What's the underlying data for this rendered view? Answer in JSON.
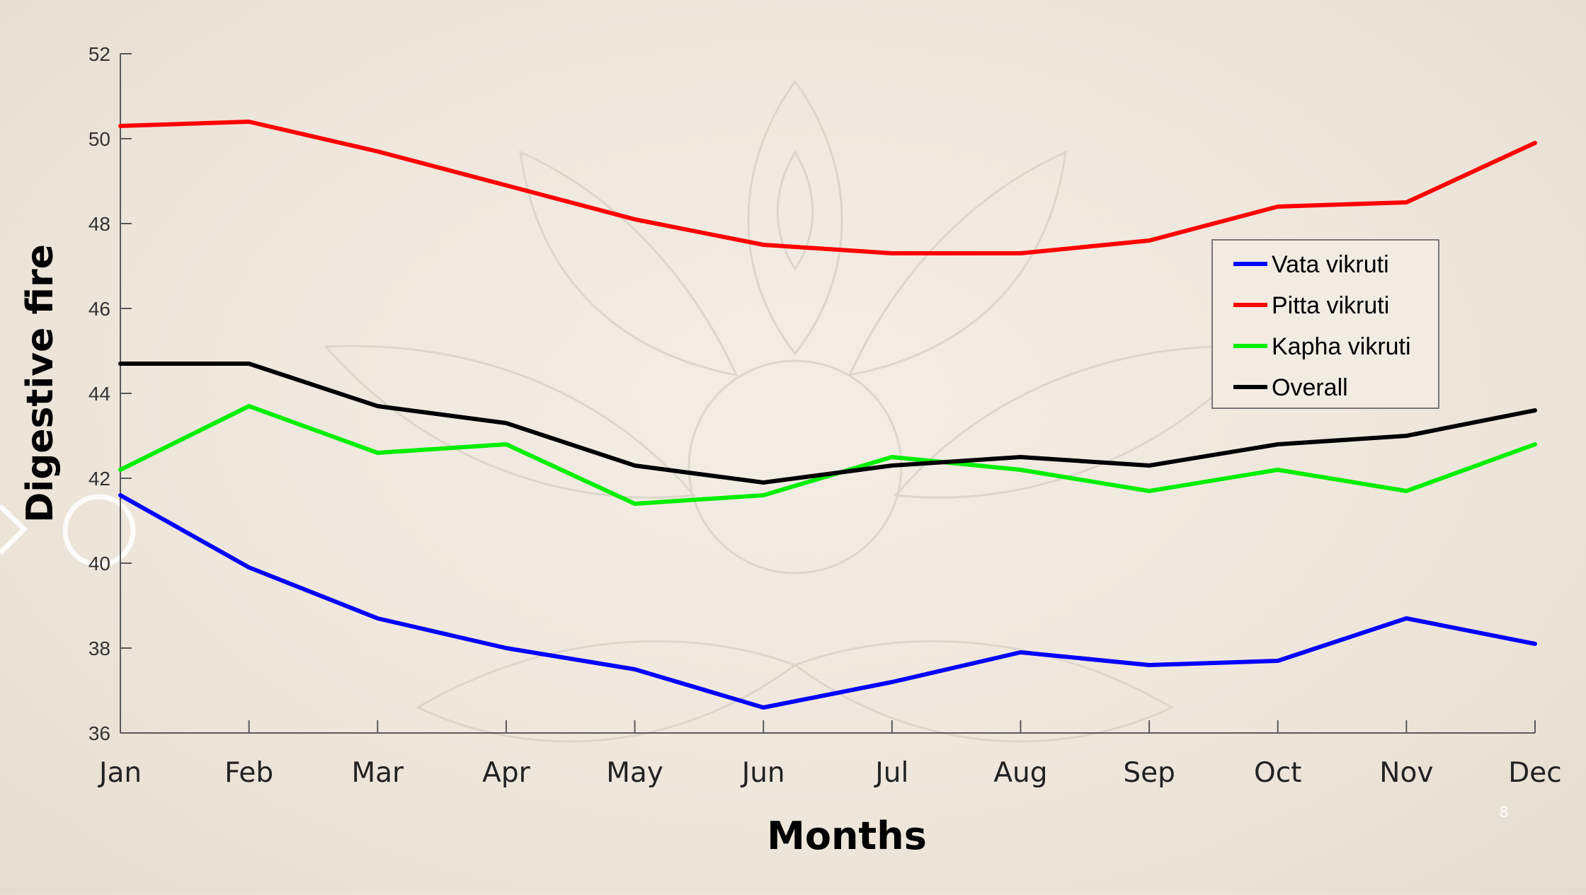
{
  "slide": {
    "page_number": "8"
  },
  "chart_data": {
    "type": "line",
    "xlabel": "Months",
    "ylabel": "Digestive fire",
    "categories": [
      "Jan",
      "Feb",
      "Mar",
      "Apr",
      "May",
      "Jun",
      "Jul",
      "Aug",
      "Sep",
      "Oct",
      "Nov",
      "Dec"
    ],
    "ylim": [
      36,
      52
    ],
    "yticks": [
      36,
      38,
      40,
      42,
      44,
      46,
      48,
      50,
      52
    ],
    "grid": false,
    "legend_position": "top-right",
    "series": [
      {
        "name": "Vata vikruti",
        "color": "#0000ff",
        "values": [
          41.6,
          39.9,
          38.7,
          38.0,
          37.5,
          36.6,
          37.2,
          37.9,
          37.6,
          37.7,
          38.7,
          38.1
        ]
      },
      {
        "name": "Pitta vikruti",
        "color": "#ff0000",
        "values": [
          50.3,
          50.4,
          49.7,
          48.9,
          48.1,
          47.5,
          47.3,
          47.3,
          47.6,
          48.4,
          48.5,
          49.9
        ]
      },
      {
        "name": "Kapha vikruti",
        "color": "#00ee00",
        "values": [
          42.2,
          43.7,
          42.6,
          42.8,
          41.4,
          41.6,
          42.5,
          42.2,
          41.7,
          42.2,
          41.7,
          42.8
        ]
      },
      {
        "name": "Overall",
        "color": "#000000",
        "values": [
          44.7,
          44.7,
          43.7,
          43.3,
          42.3,
          41.9,
          42.3,
          42.5,
          42.3,
          42.8,
          43.0,
          43.6
        ]
      }
    ]
  }
}
